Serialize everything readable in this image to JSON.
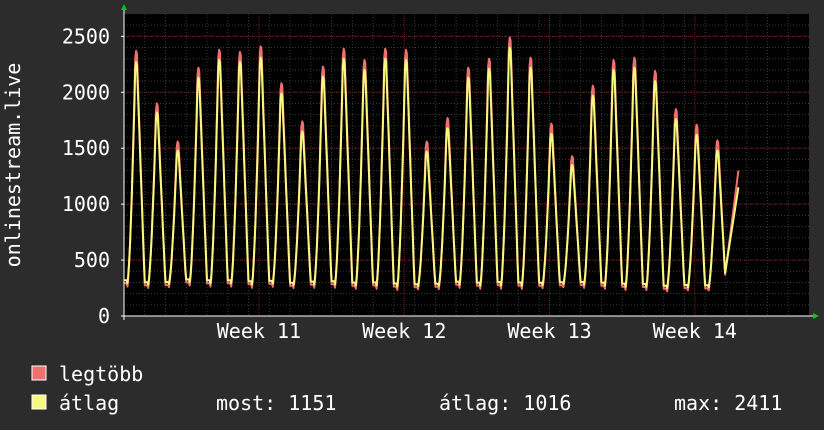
{
  "chart_data": {
    "type": "line",
    "ylabel": "onlinestream.live",
    "ylim": [
      0,
      2700
    ],
    "yticks": [
      0,
      500,
      1000,
      1500,
      2000,
      2500
    ],
    "xlim": [
      0,
      33
    ],
    "xticks": [
      {
        "label": "Week  11",
        "x": 6.5
      },
      {
        "label": "Week  12",
        "x": 13.5
      },
      {
        "label": "Week  13",
        "x": 20.5
      },
      {
        "label": "Week  14",
        "x": 27.5
      }
    ],
    "grid": true,
    "colors": {
      "background": "#2c2c2c",
      "plot": "#000000",
      "grid": "#3a3a3a",
      "major_grid": "#6a2020",
      "axis": "#ffffff",
      "arrow": "#00cc00"
    },
    "series": [
      {
        "name": "legtöbb",
        "color": "#f07070",
        "days": [
          [
            2370,
            250
          ],
          [
            1900,
            240
          ],
          [
            1560,
            250
          ],
          [
            2220,
            260
          ],
          [
            2380,
            250
          ],
          [
            2360,
            250
          ],
          [
            2410,
            240
          ],
          [
            2080,
            250
          ],
          [
            1740,
            240
          ],
          [
            2230,
            240
          ],
          [
            2390,
            240
          ],
          [
            2290,
            230
          ],
          [
            2390,
            230
          ],
          [
            2380,
            220
          ],
          [
            1560,
            230
          ],
          [
            1770,
            230
          ],
          [
            2220,
            240
          ],
          [
            2300,
            230
          ],
          [
            2490,
            230
          ],
          [
            2310,
            230
          ],
          [
            1720,
            240
          ],
          [
            1430,
            250
          ],
          [
            2060,
            240
          ],
          [
            2290,
            230
          ],
          [
            2310,
            220
          ],
          [
            2190,
            220
          ],
          [
            1850,
            210
          ],
          [
            1710,
            220
          ],
          [
            1570,
            220
          ]
        ],
        "last": 1300
      },
      {
        "name": "átlag",
        "color": "#f8f880",
        "days": [
          [
            2270,
            280
          ],
          [
            1820,
            270
          ],
          [
            1480,
            280
          ],
          [
            2130,
            290
          ],
          [
            2290,
            280
          ],
          [
            2270,
            280
          ],
          [
            2310,
            270
          ],
          [
            1990,
            280
          ],
          [
            1650,
            270
          ],
          [
            2140,
            270
          ],
          [
            2300,
            270
          ],
          [
            2200,
            260
          ],
          [
            2300,
            260
          ],
          [
            2290,
            250
          ],
          [
            1470,
            260
          ],
          [
            1680,
            260
          ],
          [
            2130,
            270
          ],
          [
            2210,
            260
          ],
          [
            2400,
            260
          ],
          [
            2220,
            260
          ],
          [
            1630,
            270
          ],
          [
            1350,
            280
          ],
          [
            1970,
            270
          ],
          [
            2200,
            260
          ],
          [
            2220,
            250
          ],
          [
            2100,
            250
          ],
          [
            1760,
            240
          ],
          [
            1620,
            250
          ],
          [
            1480,
            250
          ]
        ],
        "last": 1151
      }
    ]
  },
  "legend": {
    "max_label": "legtöbb",
    "avg_label": "átlag",
    "max_color": "#f07070",
    "avg_color": "#f8f880",
    "stats": [
      {
        "text": "most: 1151"
      },
      {
        "text": "átlag: 1016"
      },
      {
        "text": "max: 2411"
      }
    ]
  }
}
